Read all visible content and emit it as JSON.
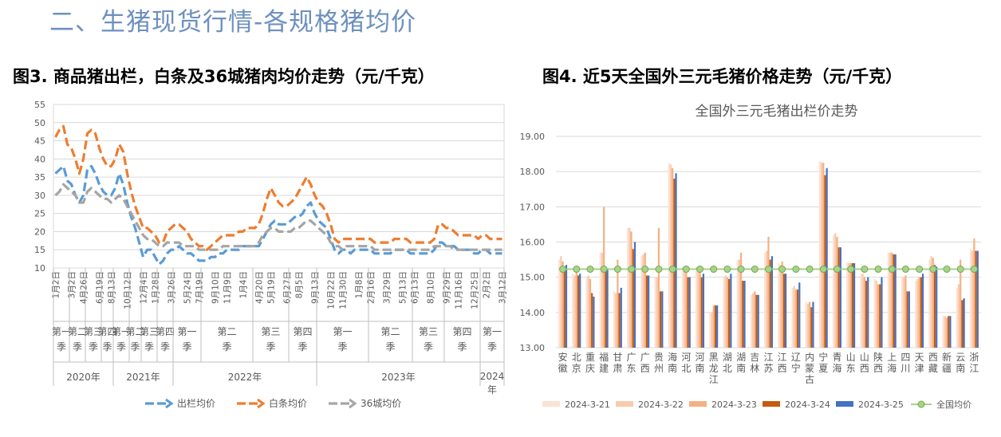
{
  "section_title": "二、生猪现货行情-各规格猪均价",
  "figure3_title": "图3. 商品猪出栏，白条及36城猪肉均价走势（元/千克）",
  "figure4_title": "图4. 近5天全国外三元毛猪价格走势（元/千克）",
  "colors": {
    "section": "#6d90bf",
    "chuLan": "#5b9bd5",
    "baiTiao": "#ed7d31",
    "city36": "#a5a5a5"
  },
  "chart_data": [
    {
      "type": "line",
      "title": "",
      "ylim": [
        10,
        55
      ],
      "yticks": [
        "10",
        "15",
        "20",
        "25",
        "30",
        "35",
        "40",
        "45",
        "50",
        "55"
      ],
      "xtick_labels": [
        "1月2日",
        "3月2日",
        "4月26日",
        "6月19日",
        "8月13日",
        "10月12日",
        "12月4日",
        "1月28日",
        "3月26日",
        "5月24日",
        "7月19日",
        "9月10日",
        "11月9日",
        "1月4日",
        "4月20日",
        "5月19日",
        "6月27日",
        "8月5日",
        "9月13日",
        "10月22日",
        "11月30日",
        "1月8日",
        "2月16日",
        "3月29日",
        "5月13日",
        "6月13日",
        "8月10日",
        "9月29日",
        "11月16日",
        "12月25日",
        "2月2日",
        "3月12日"
      ],
      "quarters": [
        {
          "label": "第一季",
          "start": 0,
          "end": 4
        },
        {
          "label": "第二季",
          "start": 4,
          "end": 8
        },
        {
          "label": "第三季",
          "start": 8,
          "end": 12
        },
        {
          "label": "第四季",
          "start": 12,
          "end": 15
        },
        {
          "label": "第一季",
          "start": 15,
          "end": 19
        },
        {
          "label": "第二季",
          "start": 19,
          "end": 22
        },
        {
          "label": "第三季",
          "start": 22,
          "end": 26
        },
        {
          "label": "第四季",
          "start": 26,
          "end": 30
        },
        {
          "label": "第一季",
          "start": 30,
          "end": 37
        },
        {
          "label": "第二季",
          "start": 37,
          "end": 50
        },
        {
          "label": "第三季",
          "start": 50,
          "end": 59
        },
        {
          "label": "第四季",
          "start": 59,
          "end": 66
        },
        {
          "label": "第一季",
          "start": 66,
          "end": 79
        },
        {
          "label": "第二季",
          "start": 79,
          "end": 90
        },
        {
          "label": "第三季",
          "start": 90,
          "end": 98
        },
        {
          "label": "第四季",
          "start": 98,
          "end": 107
        },
        {
          "label": "第一季",
          "start": 107,
          "end": 113
        }
      ],
      "years": [
        {
          "label": "2020年",
          "start": 0,
          "end": 15
        },
        {
          "label": "2021年",
          "start": 15,
          "end": 30
        },
        {
          "label": "2022年",
          "start": 30,
          "end": 66
        },
        {
          "label": "2023年",
          "start": 66,
          "end": 107
        },
        {
          "label": "2024年",
          "start": 107,
          "end": 113
        }
      ],
      "series": [
        {
          "name": "出栏均价",
          "values": [
            36,
            37,
            38,
            34,
            33,
            30,
            28,
            30,
            37,
            38,
            36,
            33,
            31,
            30,
            30,
            32,
            36,
            33,
            28,
            24,
            21,
            17,
            13,
            15,
            15,
            13,
            11,
            12,
            14,
            15,
            15,
            16,
            15,
            14,
            14,
            13,
            12,
            12,
            12,
            13,
            13,
            14,
            14,
            15,
            15,
            15,
            15,
            16,
            16,
            16,
            16,
            16,
            18,
            20,
            22,
            23,
            22,
            22,
            22,
            23,
            24,
            24,
            25,
            27,
            28,
            25,
            23,
            22,
            21,
            18,
            15,
            14,
            15,
            15,
            14,
            15,
            15,
            15,
            15,
            15,
            14,
            14,
            14,
            14,
            14,
            15,
            15,
            15,
            15,
            14,
            14,
            14,
            14,
            14,
            14,
            15,
            17,
            17,
            16,
            16,
            16,
            15,
            15,
            15,
            15,
            14,
            14,
            15,
            15,
            14,
            14,
            14,
            14
          ]
        },
        {
          "name": "白条均价",
          "values": [
            46,
            48,
            49,
            44,
            43,
            40,
            36,
            40,
            47,
            48,
            47,
            43,
            40,
            38,
            38,
            40,
            44,
            42,
            36,
            31,
            27,
            24,
            21,
            21,
            20,
            19,
            17,
            17,
            20,
            21,
            22,
            22,
            21,
            20,
            18,
            17,
            16,
            16,
            15,
            16,
            17,
            18,
            19,
            19,
            19,
            19,
            20,
            20,
            21,
            21,
            21,
            22,
            25,
            29,
            32,
            30,
            28,
            27,
            27,
            28,
            29,
            31,
            33,
            35,
            33,
            30,
            28,
            27,
            25,
            22,
            18,
            17,
            18,
            18,
            18,
            18,
            18,
            18,
            18,
            18,
            17,
            17,
            17,
            17,
            17,
            18,
            18,
            18,
            18,
            17,
            17,
            17,
            17,
            17,
            17,
            18,
            22,
            22,
            21,
            21,
            20,
            19,
            19,
            19,
            19,
            19,
            18,
            19,
            19,
            18,
            18,
            18,
            18
          ]
        },
        {
          "name": "36城均价",
          "values": [
            30,
            31,
            33,
            32,
            31,
            30,
            28,
            28,
            31,
            32,
            31,
            30,
            29,
            29,
            28,
            29,
            30,
            29,
            27,
            25,
            23,
            21,
            19,
            18,
            18,
            17,
            16,
            16,
            17,
            17,
            17,
            17,
            16,
            16,
            16,
            16,
            15,
            15,
            15,
            15,
            15,
            15,
            16,
            16,
            16,
            16,
            16,
            16,
            16,
            16,
            16,
            17,
            19,
            20,
            21,
            21,
            20,
            20,
            20,
            20,
            21,
            21,
            22,
            23,
            23,
            22,
            21,
            20,
            19,
            17,
            16,
            16,
            15,
            16,
            16,
            16,
            16,
            16,
            16,
            16,
            15,
            15,
            15,
            15,
            15,
            15,
            15,
            15,
            15,
            15,
            15,
            15,
            15,
            15,
            15,
            16,
            16,
            16,
            16,
            16,
            15,
            15,
            15,
            15,
            15,
            15,
            15,
            15,
            15,
            15,
            15,
            15,
            15
          ]
        }
      ]
    },
    {
      "type": "bar",
      "title": "全国外三元毛猪出栏价走势",
      "ylim": [
        13,
        19
      ],
      "yticks": [
        "13.00",
        "14.00",
        "15.00",
        "16.00",
        "17.00",
        "18.00",
        "19.00"
      ],
      "categories": [
        "安徽",
        "北京",
        "重庆",
        "福建",
        "甘肃",
        "广东",
        "广西",
        "贵州",
        "海南",
        "河北",
        "河南",
        "黑龙江",
        "湖北",
        "湖南",
        "吉林",
        "江苏",
        "江西",
        "辽宁",
        "内蒙古",
        "宁夏",
        "青海",
        "山东",
        "山西",
        "陕西",
        "上海",
        "四川",
        "天津",
        "西藏",
        "新疆",
        "云南",
        "浙江"
      ],
      "series": [
        {
          "name": "2024-3-21",
          "values": [
            15.5,
            15.1,
            15.0,
            15.7,
            14.6,
            16.4,
            15.6,
            15.0,
            18.25,
            15.3,
            15.3,
            14.0,
            15.0,
            15.5,
            14.5,
            15.7,
            15.4,
            14.7,
            14.3,
            18.3,
            16.2,
            15.4,
            15.1,
            14.95,
            15.7,
            15.0,
            14.9,
            15.5,
            13.9,
            14.7,
            15.8
          ]
        },
        {
          "name": "2024-3-22",
          "values": [
            15.6,
            15.05,
            15.05,
            15.7,
            14.55,
            16.4,
            15.65,
            15.0,
            18.2,
            15.3,
            15.2,
            14.0,
            15.05,
            15.5,
            14.55,
            15.75,
            15.35,
            14.75,
            14.25,
            18.25,
            16.25,
            15.4,
            15.1,
            14.9,
            15.7,
            15.0,
            14.95,
            15.6,
            13.9,
            14.8,
            15.75
          ]
        },
        {
          "name": "2024-3-23",
          "values": [
            15.45,
            15.2,
            14.95,
            17.0,
            15.5,
            16.3,
            15.7,
            16.4,
            18.1,
            15.3,
            15.15,
            14.2,
            15.0,
            15.7,
            14.6,
            16.15,
            15.45,
            14.65,
            14.3,
            18.25,
            16.15,
            15.4,
            15.0,
            14.8,
            15.7,
            15.05,
            15.0,
            15.55,
            13.85,
            15.5,
            16.1
          ]
        },
        {
          "name": "2024-3-24",
          "values": [
            15.3,
            15.05,
            14.55,
            15.2,
            14.55,
            15.8,
            15.05,
            14.6,
            17.8,
            15.0,
            15.0,
            14.2,
            14.95,
            14.9,
            14.5,
            15.5,
            15.1,
            14.65,
            14.15,
            17.9,
            15.85,
            15.4,
            14.9,
            14.8,
            15.65,
            14.6,
            15.0,
            15.35,
            13.9,
            14.35,
            15.75
          ]
        },
        {
          "name": "2024-3-25",
          "values": [
            15.35,
            15.1,
            14.45,
            15.25,
            14.7,
            16.0,
            15.05,
            14.6,
            17.95,
            15.0,
            15.1,
            14.2,
            15.1,
            14.9,
            14.5,
            15.6,
            15.1,
            14.85,
            14.3,
            18.1,
            15.85,
            15.4,
            15.0,
            15.0,
            15.65,
            14.6,
            15.1,
            15.3,
            13.9,
            14.4,
            15.75
          ]
        }
      ],
      "average": {
        "name": "全国均价",
        "value": 15.23
      }
    }
  ]
}
